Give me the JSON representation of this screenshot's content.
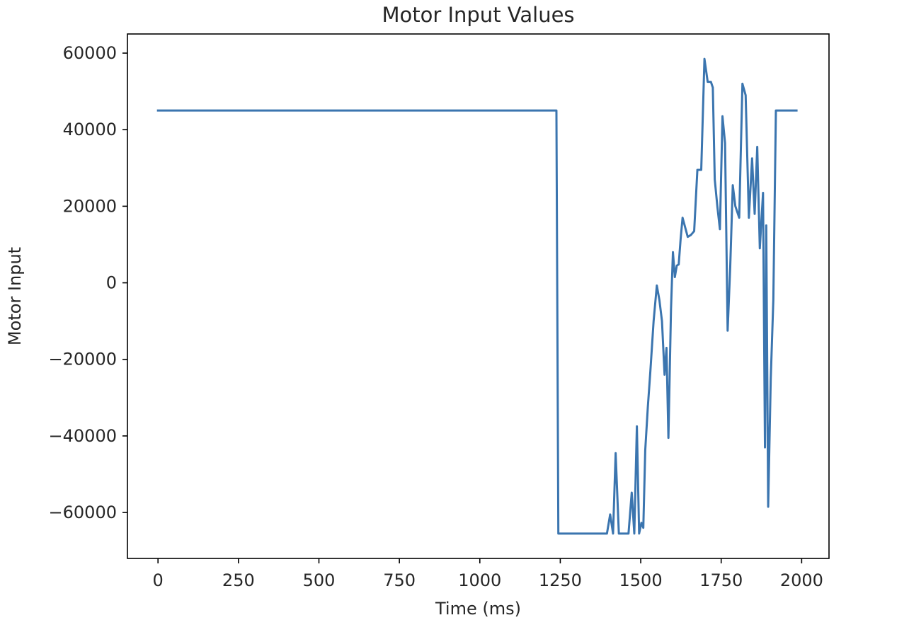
{
  "chart_data": {
    "type": "line",
    "title": "Motor Input Values",
    "xlabel": "Time (ms)",
    "ylabel": "Motor Input",
    "xlim": [
      -95,
      2085
    ],
    "ylim": [
      -72000,
      65000
    ],
    "xticks": [
      0,
      250,
      500,
      750,
      1000,
      1250,
      1500,
      1750,
      2000
    ],
    "yticks": [
      -60000,
      -40000,
      -20000,
      0,
      20000,
      40000,
      60000
    ],
    "xtick_labels": [
      "0",
      "250",
      "500",
      "750",
      "1000",
      "1250",
      "1500",
      "1750",
      "2000"
    ],
    "ytick_labels": [
      "−60000",
      "−40000",
      "−20000",
      "0",
      "20000",
      "40000",
      "60000"
    ],
    "grid": false,
    "line_color": "#3b75af",
    "series": [
      {
        "x": [
          0,
          1238,
          1244,
          1395,
          1405,
          1414,
          1422,
          1432,
          1462,
          1472,
          1480,
          1488,
          1495,
          1502,
          1508,
          1514,
          1522,
          1530,
          1540,
          1550,
          1558,
          1566,
          1574,
          1580,
          1586,
          1594,
          1600,
          1606,
          1612,
          1618,
          1624,
          1630,
          1638,
          1646,
          1656,
          1666,
          1676,
          1688,
          1698,
          1708,
          1718,
          1724,
          1730,
          1738,
          1746,
          1754,
          1762,
          1770,
          1778,
          1786,
          1794,
          1806,
          1816,
          1826,
          1836,
          1846,
          1854,
          1862,
          1870,
          1880,
          1886,
          1890,
          1896,
          1904,
          1912,
          1920,
          1928,
          1936,
          1942,
          1950,
          1958,
          1966,
          1974,
          1984
        ],
        "y": [
          45000,
          45000,
          -65500,
          -65500,
          -60500,
          -65500,
          -44500,
          -65500,
          -65500,
          -54800,
          -65500,
          -37500,
          -65500,
          -62700,
          -64000,
          -43700,
          -32500,
          -23000,
          -10000,
          -700,
          -4500,
          -10000,
          -24000,
          -17000,
          -40500,
          -7000,
          8000,
          1500,
          4500,
          4800,
          11500,
          17000,
          14500,
          12000,
          12500,
          13500,
          29500,
          29500,
          58500,
          52500,
          52500,
          51000,
          27000,
          20000,
          14000,
          43500,
          36500,
          -12500,
          4000,
          25500,
          20000,
          17000,
          52000,
          49000,
          17000,
          32500,
          18000,
          35500,
          9000,
          23500,
          -43000,
          15000,
          -58500,
          -25000,
          -4500,
          45000,
          45000,
          45000,
          45000,
          45000,
          45000,
          45000,
          45000,
          45000
        ]
      }
    ]
  }
}
